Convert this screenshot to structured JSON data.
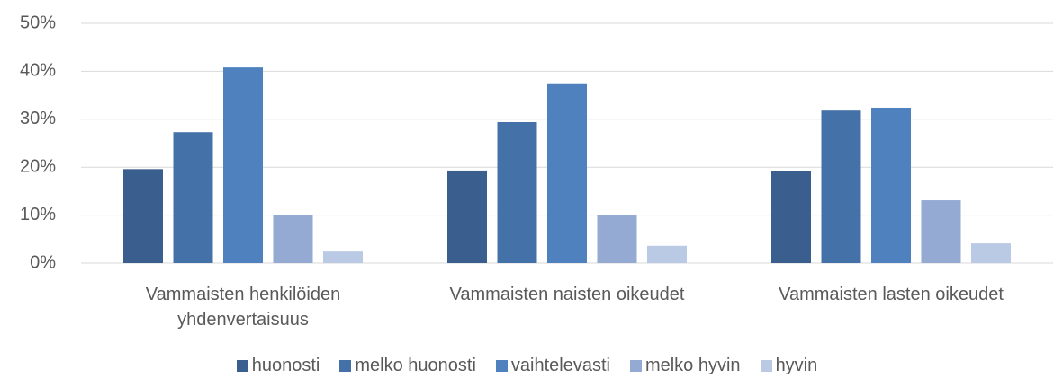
{
  "chart_data": {
    "type": "bar",
    "categories": [
      "Vammaisten henkilöiden yhdenvertaisuus",
      "Vammaisten naisten oikeudet",
      "Vammaisten lasten oikeudet"
    ],
    "series": [
      {
        "name": "huonosti",
        "color": "#3a5f8f",
        "values": [
          19.6,
          19.3,
          19.1
        ]
      },
      {
        "name": "melko huonosti",
        "color": "#4472a8",
        "values": [
          27.3,
          29.4,
          31.8
        ]
      },
      {
        "name": "vaihtelevasti",
        "color": "#4e81bd",
        "values": [
          40.8,
          37.5,
          32.4
        ]
      },
      {
        "name": "melko hyvin",
        "color": "#95aad3",
        "values": [
          10,
          10,
          13.1
        ]
      },
      {
        "name": "hyvin",
        "color": "#bac9e4",
        "values": [
          2.4,
          3.6,
          4.1
        ]
      }
    ],
    "ylim": [
      0,
      50
    ],
    "yticks": [
      {
        "value": 0,
        "label": "0%"
      },
      {
        "value": 10,
        "label": "10%"
      },
      {
        "value": 20,
        "label": "20%"
      },
      {
        "value": 30,
        "label": "30%"
      },
      {
        "value": 40,
        "label": "40%"
      },
      {
        "value": 50,
        "label": "50%"
      }
    ],
    "grid": true
  }
}
